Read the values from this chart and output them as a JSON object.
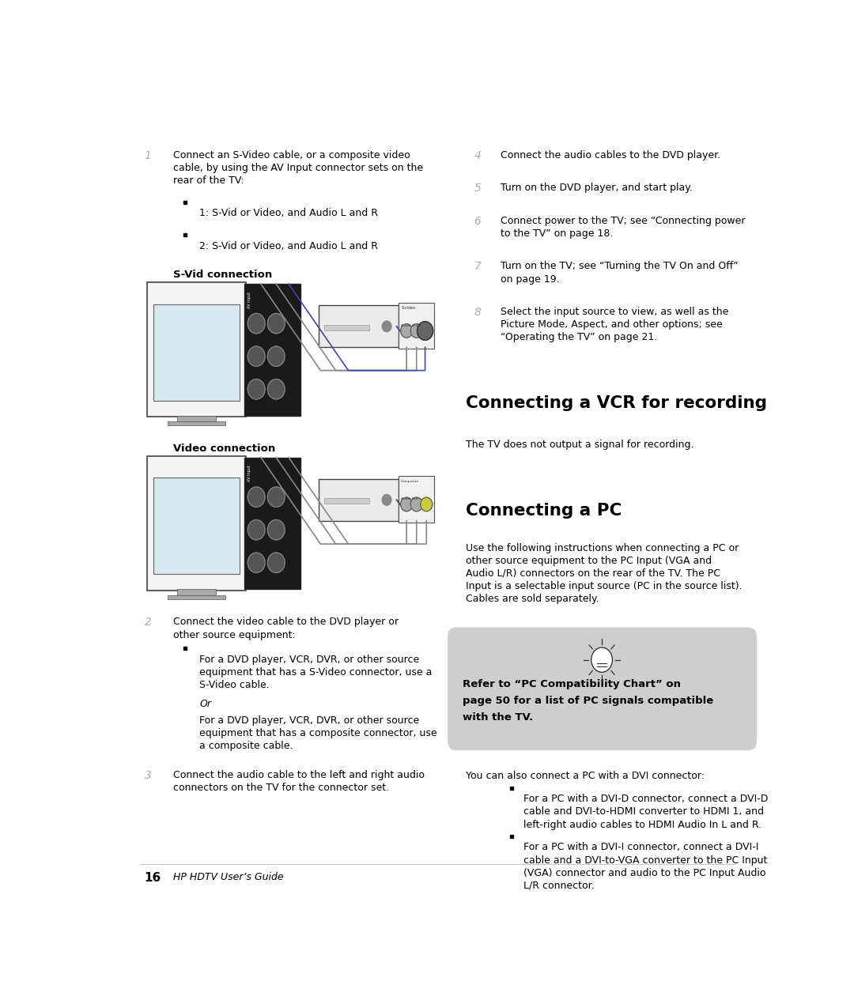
{
  "bg_color": "#ffffff",
  "page_width": 10.8,
  "page_height": 12.7,
  "step1_number": "1",
  "step1_text_line1": "Connect an S-Video cable, or a composite video",
  "step1_text_line2": "cable, by using the AV Input connector sets on the",
  "step1_text_line3": "rear of the TV:",
  "bullet1": "1: S-Vid or Video, and Audio L and R",
  "bullet2": "2: S-Vid or Video, and Audio L and R",
  "svid_label": "S-Vid connection",
  "video_label": "Video connection",
  "step2_number": "2",
  "step2_text_line1": "Connect the video cable to the DVD player or",
  "step2_text_line2": "other source equipment:",
  "step2_bullet1_line1": "For a DVD player, VCR, DVR, or other source",
  "step2_bullet1_line2": "equipment that has a S-Video connector, use a",
  "step2_bullet1_line3": "S-Video cable.",
  "step2_or": "Or",
  "step2_para_line1": "For a DVD player, VCR, DVR, or other source",
  "step2_para_line2": "equipment that has a composite connector, use",
  "step2_para_line3": "a composite cable.",
  "step3_number": "3",
  "step3_text_line1": "Connect the audio cable to the left and right audio",
  "step3_text_line2": "connectors on the TV for the connector set.",
  "step4_number": "4",
  "step4_text": "Connect the audio cables to the DVD player.",
  "step5_number": "5",
  "step5_text": "Turn on the DVD player, and start play.",
  "step6_number": "6",
  "step6_text_line1": "Connect power to the TV; see “Connecting power",
  "step6_text_line2": "to the TV” on page 18.",
  "step7_number": "7",
  "step7_text_line1": "Turn on the TV; see “Turning the TV On and Off”",
  "step7_text_line2": "on page 19.",
  "step8_number": "8",
  "step8_text_line1": "Select the input source to view, as well as the",
  "step8_text_line2": "Picture Mode, Aspect, and other options; see",
  "step8_text_line3": "“Operating the TV” on page 21.",
  "vcr_heading": "Connecting a VCR for recording",
  "vcr_text": "The TV does not output a signal for recording.",
  "pc_heading": "Connecting a PC",
  "pc_text_line1": "Use the following instructions when connecting a PC or",
  "pc_text_line2": "other source equipment to the PC Input (VGA and",
  "pc_text_line3": "Audio L/R) connectors on the rear of the TV. The PC",
  "pc_text_line4": "Input is a selectable input source (PC in the source list).",
  "pc_text_line5": "Cables are sold separately.",
  "tip_box_text_line1": "Refer to “PC Compatibility Chart” on",
  "tip_box_text_line2": "page 50 for a list of PC signals compatible",
  "tip_box_text_line3": "with the TV.",
  "tip_box_bg": "#cecece",
  "pc_dvi_intro": "You can also connect a PC with a DVI connector:",
  "pc_dvi_b1_line1": "For a PC with a DVI-D connector, connect a DVI-D",
  "pc_dvi_b1_line2": "cable and DVI-to-HDMI converter to HDMI 1, and",
  "pc_dvi_b1_line3": "left-right audio cables to HDMI Audio In L and R.",
  "pc_dvi_b2_line1": "For a PC with a DVI-I connector, connect a DVI-I",
  "pc_dvi_b2_line2": "cable and a DVI-to-VGA converter to the PC Input",
  "pc_dvi_b2_line3": "(VGA) connector and audio to the PC Input Audio",
  "pc_dvi_b2_line4": "L/R connector.",
  "footer_page": "16",
  "footer_text": "HP HDTV User’s Guide",
  "text_color": "#000000",
  "number_color": "#aaaaaa",
  "body_font_size": 9.0,
  "heading_font_size": 15.5,
  "subheading_font_size": 11
}
